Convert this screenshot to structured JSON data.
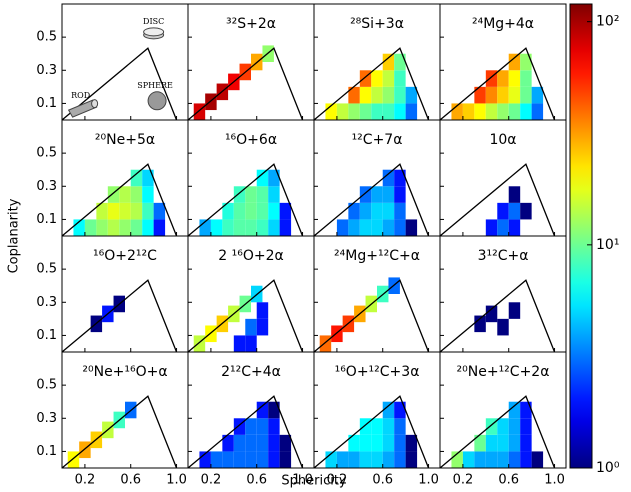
{
  "chart_data": {
    "type": "heatmap-grid",
    "x_label": "Sphericity",
    "y_label": "Coplanarity",
    "xlim": [
      0,
      1.1
    ],
    "ylim": [
      0,
      0.7
    ],
    "xticks": [
      0.2,
      0.6,
      {
        "value": 1,
        "label": "1.0"
      }
    ],
    "yticks": [
      0.1,
      0.3,
      0.5
    ],
    "colorbar": {
      "log": true,
      "clim": [
        1,
        120
      ],
      "ticks": [
        {
          "value": 1,
          "label": "10⁰"
        },
        {
          "value": 10,
          "label": "10¹"
        },
        {
          "value": 100,
          "label": "10²"
        }
      ]
    },
    "panels": [
      {
        "shapes": [
          "DISC",
          "ROD",
          "SPHERE"
        ],
        "cells": []
      },
      {
        "title": "³²S+2α",
        "cells": [
          [
            0.1,
            0.05,
            80
          ],
          [
            0.2,
            0.11,
            100
          ],
          [
            0.3,
            0.17,
            90
          ],
          [
            0.4,
            0.23,
            70
          ],
          [
            0.5,
            0.29,
            50
          ],
          [
            0.6,
            0.35,
            30
          ],
          [
            0.7,
            0.4,
            12
          ]
        ]
      },
      {
        "title": "²⁸Si+3α",
        "cells": [
          [
            0.15,
            0.05,
            20
          ],
          [
            0.25,
            0.05,
            15
          ],
          [
            0.35,
            0.05,
            12
          ],
          [
            0.45,
            0.05,
            10
          ],
          [
            0.55,
            0.05,
            8
          ],
          [
            0.65,
            0.05,
            8
          ],
          [
            0.75,
            0.05,
            6
          ],
          [
            0.85,
            0.05,
            3
          ],
          [
            0.35,
            0.15,
            40
          ],
          [
            0.45,
            0.15,
            20
          ],
          [
            0.55,
            0.15,
            15
          ],
          [
            0.65,
            0.15,
            12
          ],
          [
            0.75,
            0.15,
            8
          ],
          [
            0.85,
            0.15,
            4
          ],
          [
            0.45,
            0.25,
            40
          ],
          [
            0.55,
            0.25,
            20
          ],
          [
            0.65,
            0.25,
            15
          ],
          [
            0.75,
            0.25,
            8
          ],
          [
            0.65,
            0.35,
            25
          ],
          [
            0.75,
            0.35,
            10
          ]
        ]
      },
      {
        "title": "²⁴Mg+4α",
        "cells": [
          [
            0.15,
            0.05,
            30
          ],
          [
            0.25,
            0.05,
            25
          ],
          [
            0.35,
            0.05,
            20
          ],
          [
            0.45,
            0.05,
            15
          ],
          [
            0.55,
            0.05,
            12
          ],
          [
            0.65,
            0.05,
            10
          ],
          [
            0.75,
            0.05,
            6
          ],
          [
            0.85,
            0.05,
            3
          ],
          [
            0.35,
            0.15,
            50
          ],
          [
            0.45,
            0.15,
            35
          ],
          [
            0.55,
            0.15,
            25
          ],
          [
            0.65,
            0.15,
            18
          ],
          [
            0.75,
            0.15,
            10
          ],
          [
            0.85,
            0.15,
            4
          ],
          [
            0.45,
            0.25,
            50
          ],
          [
            0.55,
            0.25,
            30
          ],
          [
            0.65,
            0.25,
            20
          ],
          [
            0.75,
            0.25,
            10
          ],
          [
            0.65,
            0.35,
            30
          ],
          [
            0.75,
            0.35,
            12
          ]
        ]
      },
      {
        "title": "²⁰Ne+5α",
        "cells": [
          [
            0.15,
            0.05,
            6
          ],
          [
            0.25,
            0.05,
            10
          ],
          [
            0.35,
            0.05,
            12
          ],
          [
            0.45,
            0.05,
            14
          ],
          [
            0.55,
            0.05,
            12
          ],
          [
            0.65,
            0.05,
            10
          ],
          [
            0.75,
            0.05,
            6
          ],
          [
            0.85,
            0.05,
            2
          ],
          [
            0.35,
            0.15,
            15
          ],
          [
            0.45,
            0.15,
            18
          ],
          [
            0.55,
            0.15,
            16
          ],
          [
            0.65,
            0.15,
            14
          ],
          [
            0.75,
            0.15,
            8
          ],
          [
            0.85,
            0.15,
            3
          ],
          [
            0.45,
            0.25,
            12
          ],
          [
            0.55,
            0.25,
            14
          ],
          [
            0.65,
            0.25,
            12
          ],
          [
            0.75,
            0.25,
            6
          ],
          [
            0.65,
            0.35,
            8
          ],
          [
            0.75,
            0.35,
            5
          ]
        ]
      },
      {
        "title": "¹⁶O+6α",
        "cells": [
          [
            0.15,
            0.05,
            4
          ],
          [
            0.25,
            0.05,
            6
          ],
          [
            0.35,
            0.05,
            8
          ],
          [
            0.45,
            0.05,
            9
          ],
          [
            0.55,
            0.05,
            9
          ],
          [
            0.65,
            0.05,
            8
          ],
          [
            0.75,
            0.05,
            5
          ],
          [
            0.85,
            0.05,
            2
          ],
          [
            0.35,
            0.15,
            7
          ],
          [
            0.45,
            0.15,
            9
          ],
          [
            0.55,
            0.15,
            10
          ],
          [
            0.65,
            0.15,
            9
          ],
          [
            0.75,
            0.15,
            6
          ],
          [
            0.85,
            0.15,
            2
          ],
          [
            0.45,
            0.25,
            8
          ],
          [
            0.55,
            0.25,
            10
          ],
          [
            0.65,
            0.25,
            9
          ],
          [
            0.75,
            0.25,
            5
          ],
          [
            0.65,
            0.35,
            6
          ],
          [
            0.75,
            0.35,
            4
          ]
        ]
      },
      {
        "title": "¹²C+7α",
        "cells": [
          [
            0.25,
            0.05,
            3
          ],
          [
            0.35,
            0.05,
            4
          ],
          [
            0.45,
            0.05,
            5
          ],
          [
            0.55,
            0.05,
            5
          ],
          [
            0.65,
            0.05,
            4
          ],
          [
            0.75,
            0.05,
            3
          ],
          [
            0.85,
            0.05,
            1
          ],
          [
            0.35,
            0.15,
            3
          ],
          [
            0.45,
            0.15,
            4
          ],
          [
            0.55,
            0.15,
            5
          ],
          [
            0.65,
            0.15,
            5
          ],
          [
            0.75,
            0.15,
            3
          ],
          [
            0.45,
            0.25,
            3
          ],
          [
            0.55,
            0.25,
            4
          ],
          [
            0.65,
            0.25,
            4
          ],
          [
            0.75,
            0.25,
            2
          ],
          [
            0.65,
            0.35,
            3
          ],
          [
            0.75,
            0.35,
            2
          ]
        ]
      },
      {
        "title": "10α",
        "cells": [
          [
            0.45,
            0.05,
            2
          ],
          [
            0.55,
            0.05,
            3
          ],
          [
            0.65,
            0.05,
            2
          ],
          [
            0.55,
            0.15,
            2
          ],
          [
            0.65,
            0.15,
            3
          ],
          [
            0.75,
            0.15,
            1
          ],
          [
            0.65,
            0.25,
            1
          ]
        ]
      },
      {
        "title": "¹⁶O+2¹²C",
        "cells": [
          [
            0.3,
            0.17,
            1
          ],
          [
            0.4,
            0.23,
            2
          ],
          [
            0.5,
            0.29,
            1
          ]
        ]
      },
      {
        "title": "2 ¹⁶O+2α",
        "cells": [
          [
            0.1,
            0.05,
            15
          ],
          [
            0.2,
            0.11,
            20
          ],
          [
            0.3,
            0.17,
            25
          ],
          [
            0.4,
            0.23,
            15
          ],
          [
            0.5,
            0.29,
            10
          ],
          [
            0.6,
            0.35,
            5
          ],
          [
            0.45,
            0.05,
            2
          ],
          [
            0.55,
            0.05,
            2
          ],
          [
            0.55,
            0.15,
            3
          ],
          [
            0.65,
            0.15,
            2
          ],
          [
            0.65,
            0.25,
            2
          ]
        ]
      },
      {
        "title": "²⁴Mg+¹²C+α",
        "cells": [
          [
            0.1,
            0.05,
            40
          ],
          [
            0.2,
            0.11,
            60
          ],
          [
            0.3,
            0.17,
            50
          ],
          [
            0.4,
            0.23,
            30
          ],
          [
            0.5,
            0.29,
            15
          ],
          [
            0.6,
            0.35,
            8
          ],
          [
            0.7,
            0.4,
            3
          ]
        ]
      },
      {
        "title": "3¹²C+α",
        "cells": [
          [
            0.35,
            0.17,
            1
          ],
          [
            0.45,
            0.23,
            1
          ],
          [
            0.55,
            0.15,
            1
          ],
          [
            0.65,
            0.25,
            1
          ]
        ]
      },
      {
        "title": "²⁰Ne+¹⁶O+α",
        "cells": [
          [
            0.1,
            0.05,
            20
          ],
          [
            0.2,
            0.11,
            30
          ],
          [
            0.3,
            0.17,
            25
          ],
          [
            0.4,
            0.23,
            15
          ],
          [
            0.5,
            0.29,
            8
          ],
          [
            0.6,
            0.35,
            3
          ]
        ]
      },
      {
        "title": "2¹²C+4α",
        "cells": [
          [
            0.15,
            0.05,
            2
          ],
          [
            0.25,
            0.05,
            3
          ],
          [
            0.35,
            0.05,
            3
          ],
          [
            0.45,
            0.05,
            3
          ],
          [
            0.55,
            0.05,
            3
          ],
          [
            0.65,
            0.05,
            3
          ],
          [
            0.75,
            0.05,
            2
          ],
          [
            0.85,
            0.05,
            1
          ],
          [
            0.35,
            0.15,
            2
          ],
          [
            0.45,
            0.15,
            3
          ],
          [
            0.55,
            0.15,
            3
          ],
          [
            0.65,
            0.15,
            3
          ],
          [
            0.75,
            0.15,
            2
          ],
          [
            0.85,
            0.15,
            1
          ],
          [
            0.45,
            0.25,
            2
          ],
          [
            0.55,
            0.25,
            3
          ],
          [
            0.65,
            0.25,
            3
          ],
          [
            0.75,
            0.25,
            2
          ],
          [
            0.65,
            0.35,
            2
          ],
          [
            0.75,
            0.35,
            1
          ]
        ]
      },
      {
        "title": "¹⁶O+¹²C+3α",
        "cells": [
          [
            0.15,
            0.05,
            5
          ],
          [
            0.25,
            0.05,
            4
          ],
          [
            0.35,
            0.05,
            4
          ],
          [
            0.45,
            0.05,
            5
          ],
          [
            0.55,
            0.05,
            5
          ],
          [
            0.65,
            0.05,
            4
          ],
          [
            0.75,
            0.05,
            3
          ],
          [
            0.85,
            0.05,
            1
          ],
          [
            0.35,
            0.15,
            6
          ],
          [
            0.45,
            0.15,
            6
          ],
          [
            0.55,
            0.15,
            6
          ],
          [
            0.65,
            0.15,
            5
          ],
          [
            0.75,
            0.15,
            3
          ],
          [
            0.85,
            0.15,
            1
          ],
          [
            0.45,
            0.25,
            6
          ],
          [
            0.55,
            0.25,
            6
          ],
          [
            0.65,
            0.25,
            5
          ],
          [
            0.75,
            0.25,
            3
          ],
          [
            0.65,
            0.35,
            4
          ],
          [
            0.75,
            0.35,
            2
          ]
        ]
      },
      {
        "title": "²⁰Ne+¹²C+2α",
        "cells": [
          [
            0.15,
            0.05,
            12
          ],
          [
            0.25,
            0.05,
            5
          ],
          [
            0.35,
            0.05,
            4
          ],
          [
            0.45,
            0.05,
            4
          ],
          [
            0.55,
            0.05,
            4
          ],
          [
            0.65,
            0.05,
            3
          ],
          [
            0.75,
            0.05,
            2
          ],
          [
            0.85,
            0.05,
            1
          ],
          [
            0.35,
            0.15,
            10
          ],
          [
            0.45,
            0.15,
            5
          ],
          [
            0.55,
            0.15,
            5
          ],
          [
            0.65,
            0.15,
            4
          ],
          [
            0.75,
            0.15,
            2
          ],
          [
            0.45,
            0.25,
            8
          ],
          [
            0.55,
            0.25,
            5
          ],
          [
            0.65,
            0.25,
            4
          ],
          [
            0.75,
            0.25,
            2
          ],
          [
            0.65,
            0.35,
            4
          ],
          [
            0.75,
            0.35,
            2
          ]
        ]
      }
    ]
  }
}
